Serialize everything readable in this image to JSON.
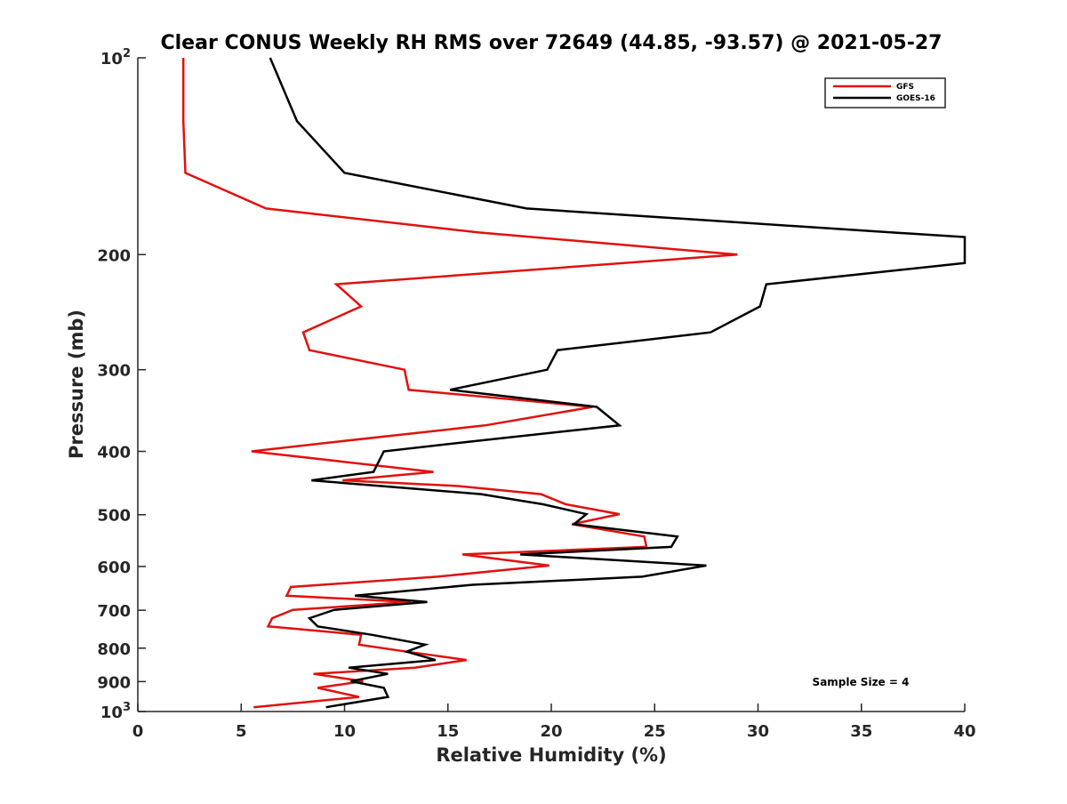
{
  "chart_data": {
    "type": "line",
    "title": "Clear CONUS Weekly RH RMS over 72649 (44.85, -93.57) @ 2021-05-27",
    "xlabel": "Relative Humidity (%)",
    "ylabel": "Pressure (mb)",
    "xlim": [
      0,
      40
    ],
    "ylim": [
      100,
      1000
    ],
    "y_scale": "log",
    "y_reversed": true,
    "grid": false,
    "legend_position": "top-right",
    "x_ticks": [
      "0",
      "5",
      "10",
      "15",
      "20",
      "25",
      "30",
      "35",
      "40"
    ],
    "y_ticks": [
      {
        "value": 100,
        "base": "10",
        "exp": "2"
      },
      {
        "value": 200,
        "label": "200"
      },
      {
        "value": 300,
        "label": "300"
      },
      {
        "value": 400,
        "label": "400"
      },
      {
        "value": 500,
        "label": "500"
      },
      {
        "value": 600,
        "label": "600"
      },
      {
        "value": 700,
        "label": "700"
      },
      {
        "value": 800,
        "label": "800"
      },
      {
        "value": 900,
        "label": "900"
      },
      {
        "value": 1000,
        "base": "10",
        "exp": "3"
      }
    ],
    "annotation": "Sample Size = 4",
    "series": [
      {
        "name": "GFS",
        "color": "#e0110f",
        "points": [
          [
            2.2,
            100
          ],
          [
            2.2,
            125
          ],
          [
            2.3,
            150
          ],
          [
            6.2,
            170
          ],
          [
            16.5,
            185
          ],
          [
            29.0,
            200
          ],
          [
            9.6,
            222
          ],
          [
            10.8,
            240
          ],
          [
            8.0,
            263
          ],
          [
            8.3,
            280
          ],
          [
            12.9,
            300
          ],
          [
            13.1,
            322
          ],
          [
            22.0,
            342
          ],
          [
            16.8,
            365
          ],
          [
            9.5,
            387
          ],
          [
            5.5,
            400
          ],
          [
            14.3,
            430
          ],
          [
            9.9,
            443
          ],
          [
            15.5,
            452
          ],
          [
            19.5,
            465
          ],
          [
            20.7,
            482
          ],
          [
            23.3,
            499
          ],
          [
            21.0,
            517
          ],
          [
            24.5,
            540
          ],
          [
            24.6,
            560
          ],
          [
            15.7,
            575
          ],
          [
            19.9,
            598
          ],
          [
            14.5,
            622
          ],
          [
            7.4,
            645
          ],
          [
            7.2,
            665
          ],
          [
            13.2,
            680
          ],
          [
            7.5,
            699
          ],
          [
            6.5,
            720
          ],
          [
            6.3,
            741
          ],
          [
            10.8,
            763
          ],
          [
            10.7,
            790
          ],
          [
            13.0,
            810
          ],
          [
            15.9,
            834
          ],
          [
            13.4,
            857
          ],
          [
            8.5,
            876
          ],
          [
            10.9,
            899
          ],
          [
            8.7,
            920
          ],
          [
            10.7,
            950
          ],
          [
            5.6,
            985
          ]
        ]
      },
      {
        "name": "GOES-16",
        "color": "#000000",
        "points": [
          [
            6.4,
            100
          ],
          [
            7.7,
            125
          ],
          [
            10.0,
            150
          ],
          [
            18.8,
            170
          ],
          [
            36.5,
            185
          ],
          [
            40.0,
            188
          ],
          [
            40.0,
            206
          ],
          [
            30.4,
            222
          ],
          [
            30.1,
            240
          ],
          [
            27.7,
            263
          ],
          [
            20.3,
            280
          ],
          [
            19.8,
            300
          ],
          [
            15.1,
            322
          ],
          [
            22.2,
            342
          ],
          [
            23.3,
            365
          ],
          [
            15.9,
            387
          ],
          [
            11.9,
            400
          ],
          [
            11.4,
            430
          ],
          [
            8.4,
            443
          ],
          [
            16.6,
            465
          ],
          [
            19.6,
            482
          ],
          [
            21.7,
            499
          ],
          [
            21.1,
            517
          ],
          [
            26.1,
            540
          ],
          [
            25.8,
            560
          ],
          [
            18.5,
            575
          ],
          [
            27.5,
            598
          ],
          [
            24.4,
            622
          ],
          [
            16.2,
            640
          ],
          [
            10.5,
            665
          ],
          [
            14.0,
            680
          ],
          [
            9.5,
            699
          ],
          [
            8.3,
            720
          ],
          [
            8.7,
            741
          ],
          [
            11.3,
            763
          ],
          [
            13.9,
            790
          ],
          [
            13.0,
            810
          ],
          [
            14.4,
            834
          ],
          [
            10.2,
            857
          ],
          [
            12.1,
            876
          ],
          [
            10.3,
            899
          ],
          [
            11.9,
            920
          ],
          [
            12.1,
            950
          ],
          [
            9.1,
            985
          ]
        ]
      }
    ]
  }
}
